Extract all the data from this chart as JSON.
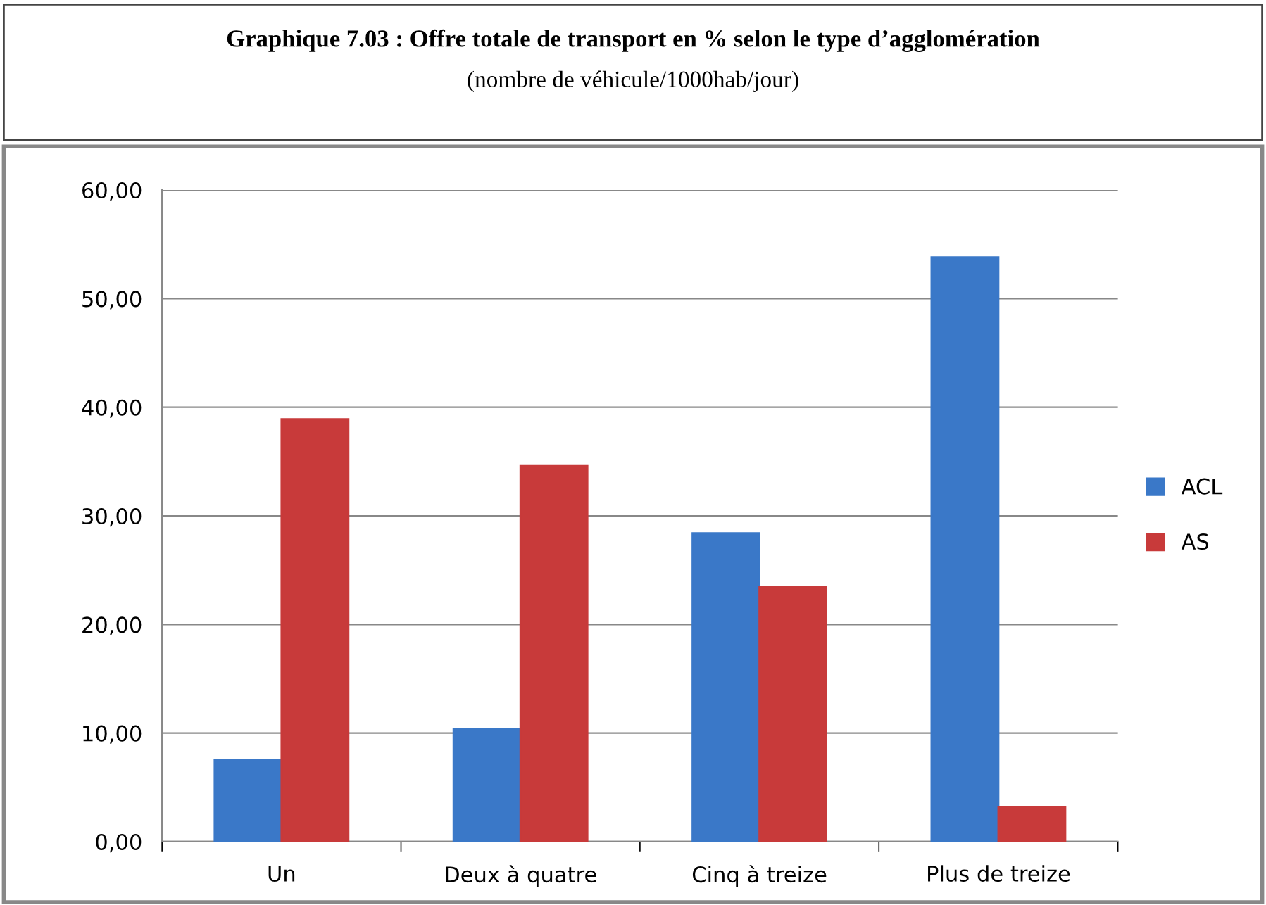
{
  "chart_data": {
    "type": "bar",
    "title": "Graphique 7.03 : Offre totale de transport en % selon le type d’agglomération",
    "subtitle": "(nombre de véhicule/1000hab/jour)",
    "categories": [
      "Un",
      "Deux à quatre",
      "Cinq à treize",
      "Plus de treize"
    ],
    "series": [
      {
        "name": "ACL",
        "color": "#3a78c8",
        "values": [
          7.5,
          10.4,
          28.4,
          53.8
        ]
      },
      {
        "name": "AS",
        "color": "#c83a3a",
        "values": [
          38.9,
          34.6,
          23.5,
          3.2
        ]
      }
    ],
    "ylim": [
      0,
      60
    ],
    "yticks": [
      {
        "value": 0,
        "label": "0,00"
      },
      {
        "value": 10,
        "label": "10,00"
      },
      {
        "value": 20,
        "label": "20,00"
      },
      {
        "value": 30,
        "label": "30,00"
      },
      {
        "value": 40,
        "label": "40,00"
      },
      {
        "value": 50,
        "label": "50,00"
      },
      {
        "value": 60,
        "label": "60,00"
      }
    ],
    "grid": "y",
    "legend": "right"
  }
}
